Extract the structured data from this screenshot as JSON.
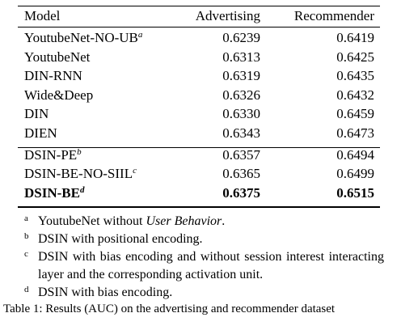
{
  "table": {
    "header": [
      "Model",
      "Advertising",
      "Recommender"
    ],
    "groups": [
      [
        {
          "model": "YoutubeNet-NO-UB",
          "note": "a",
          "advertising": "0.6239",
          "recommender": "0.6419"
        },
        {
          "model": "YoutubeNet",
          "advertising": "0.6313",
          "recommender": "0.6425"
        },
        {
          "model": "DIN-RNN",
          "advertising": "0.6319",
          "recommender": "0.6435"
        },
        {
          "model": "Wide&Deep",
          "advertising": "0.6326",
          "recommender": "0.6432"
        },
        {
          "model": "DIN",
          "advertising": "0.6330",
          "recommender": "0.6459"
        },
        {
          "model": "DIEN",
          "advertising": "0.6343",
          "recommender": "0.6473"
        }
      ],
      [
        {
          "model": "DSIN-PE",
          "note": "b",
          "advertising": "0.6357",
          "recommender": "0.6494"
        },
        {
          "model": "DSIN-BE-NO-SIIL",
          "note": "c",
          "advertising": "0.6365",
          "recommender": "0.6499"
        },
        {
          "model": "DSIN-BE",
          "note": "d",
          "advertising": "0.6375",
          "recommender": "0.6515"
        }
      ]
    ],
    "footnotes": [
      {
        "mark": "a",
        "parts": [
          "YoutubeNet without ",
          "User Behavior",
          "."
        ]
      },
      {
        "mark": "b",
        "parts": [
          "DSIN with positional encoding."
        ]
      },
      {
        "mark": "c",
        "parts": [
          "DSIN with bias encoding and without session interest interacting layer and the corresponding activation unit."
        ]
      },
      {
        "mark": "d",
        "parts": [
          "DSIN with bias encoding."
        ]
      }
    ],
    "caption": "Table 1: Results (AUC) on the advertising and recommender dataset"
  }
}
